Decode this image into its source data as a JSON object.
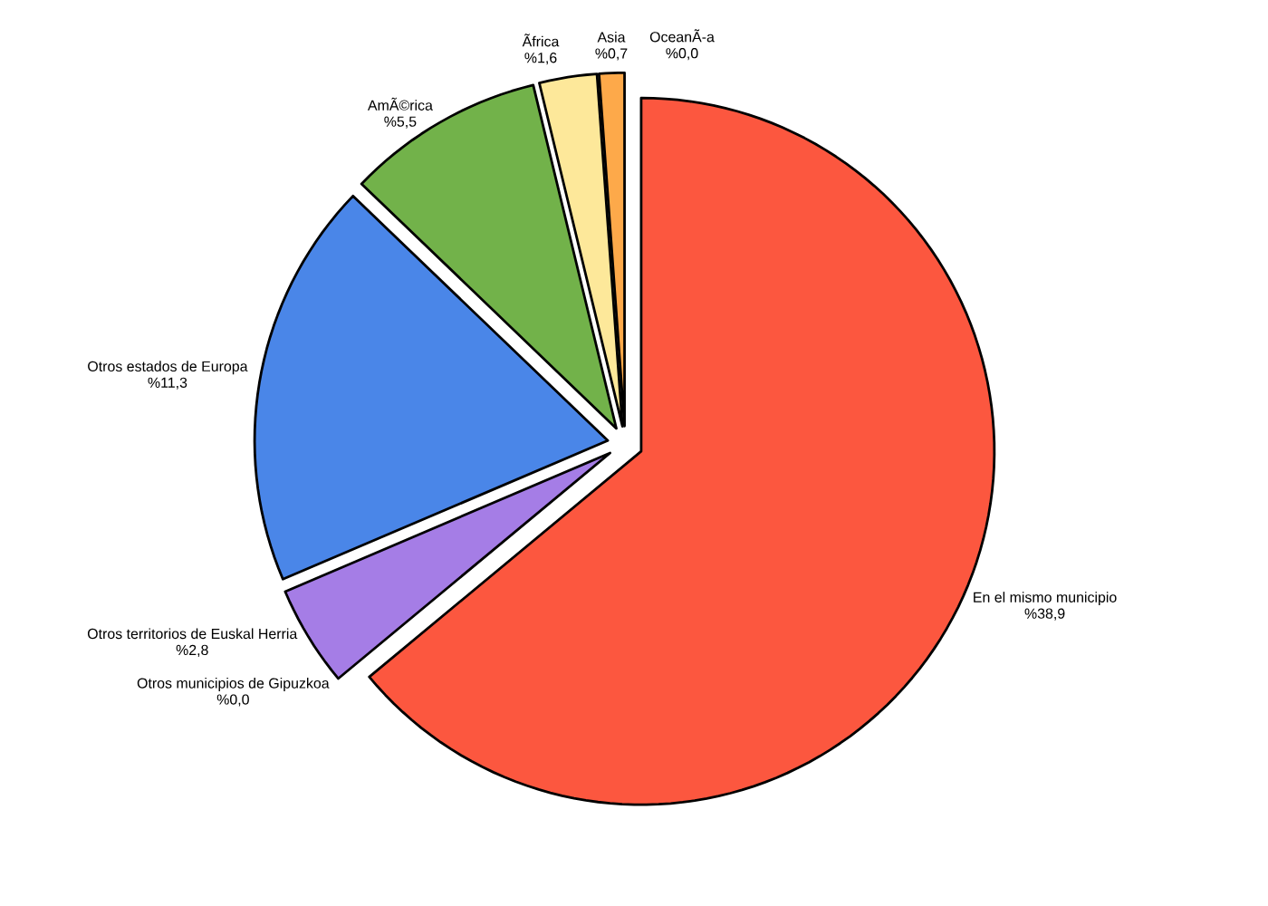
{
  "chart_data": {
    "type": "pie",
    "categories": [
      "En el mismo municipio",
      "Otros municipios de Gipuzkoa",
      "Otros territorios de Euskal Herria",
      "Otros estados de Europa",
      "AmÃ©rica",
      "Ãfrica",
      "Asia",
      "OceanÃ-a"
    ],
    "values": [
      38.9,
      0.0,
      2.8,
      11.3,
      5.5,
      1.6,
      0.7,
      0.0
    ],
    "value_labels": [
      "%38,9",
      "%0,0",
      "%2,8",
      "%11,3",
      "%5,5",
      "%1,6",
      "%0,7",
      "%0,0"
    ],
    "colors": [
      "#fc573f",
      "#a57de6",
      "#a57de6",
      "#4a86e8",
      "#72b24a",
      "#fde89a",
      "#fda94a",
      "#fda94a"
    ]
  }
}
